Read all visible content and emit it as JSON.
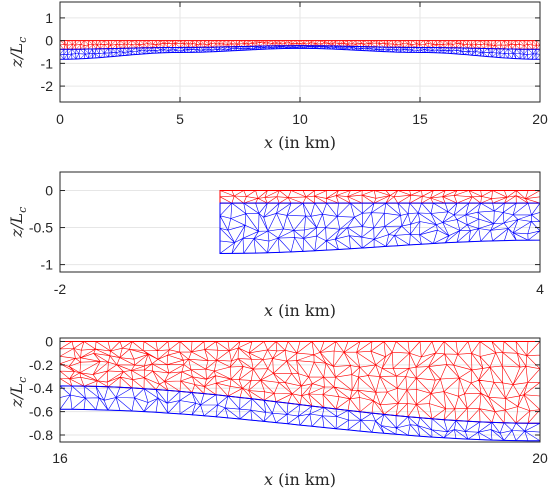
{
  "chart_data": [
    {
      "type": "mesh",
      "xlabel": "x (in km)",
      "ylabel": "z/L_c",
      "xlim": [
        0,
        20
      ],
      "ylim": [
        -2.7,
        1.7
      ],
      "xticks": [
        0,
        5,
        10,
        15,
        20
      ],
      "xtick_labels": [
        "0",
        "5",
        "10",
        "15",
        "20"
      ],
      "yticks": [
        1,
        0,
        -1,
        -2
      ],
      "ytick_labels": [
        "1",
        "0",
        "-1",
        "-2"
      ],
      "grid": true,
      "series": [
        {
          "color": "#ff0000",
          "x": [
            0,
            5,
            10,
            15,
            20
          ],
          "top": [
            0,
            0,
            0,
            0,
            0
          ],
          "bottom": [
            -0.38,
            -0.3,
            -0.22,
            -0.3,
            -0.38
          ]
        },
        {
          "color": "#0000ff",
          "x": [
            0,
            5,
            10,
            15,
            20
          ],
          "top": [
            -0.38,
            -0.3,
            -0.22,
            -0.3,
            -0.38
          ],
          "bottom": [
            -0.82,
            -0.52,
            -0.34,
            -0.52,
            -0.82
          ]
        }
      ]
    },
    {
      "type": "mesh",
      "xlabel": "x (in km)",
      "ylabel": "z/L_c",
      "xlim": [
        -2,
        4
      ],
      "ylim": [
        -1.1,
        0.25
      ],
      "xticks": [
        -2,
        4
      ],
      "xtick_labels": [
        "-2",
        "4"
      ],
      "yticks": [
        0,
        -0.5,
        -1
      ],
      "ytick_labels": [
        "0",
        "-0.5",
        "-1"
      ],
      "grid": true,
      "series": [
        {
          "color": "#ff0000",
          "x": [
            0,
            4
          ],
          "top": [
            0,
            0
          ],
          "bottom": [
            -0.17,
            -0.17
          ]
        },
        {
          "color": "#0000ff",
          "x": [
            0,
            4
          ],
          "top": [
            -0.17,
            -0.17
          ],
          "bottom": [
            -0.85,
            -0.67
          ]
        }
      ]
    },
    {
      "type": "mesh",
      "xlabel": "x (in km)",
      "ylabel": "z/L_c",
      "xlim": [
        16,
        20
      ],
      "ylim": [
        -0.86,
        0.03
      ],
      "xticks": [
        16,
        20
      ],
      "xtick_labels": [
        "16",
        "20"
      ],
      "yticks": [
        0,
        -0.2,
        -0.4,
        -0.6,
        -0.8
      ],
      "ytick_labels": [
        "0",
        "-0.2",
        "-0.4",
        "-0.6",
        "-0.8"
      ],
      "grid": true,
      "series": [
        {
          "color": "#ff0000",
          "x": [
            16,
            20
          ],
          "top": [
            0,
            0
          ],
          "bottom": [
            -0.38,
            -0.7
          ]
        },
        {
          "color": "#0000ff",
          "x": [
            16,
            20
          ],
          "top": [
            -0.38,
            -0.7
          ],
          "bottom": [
            -0.58,
            -0.85
          ]
        }
      ]
    }
  ]
}
